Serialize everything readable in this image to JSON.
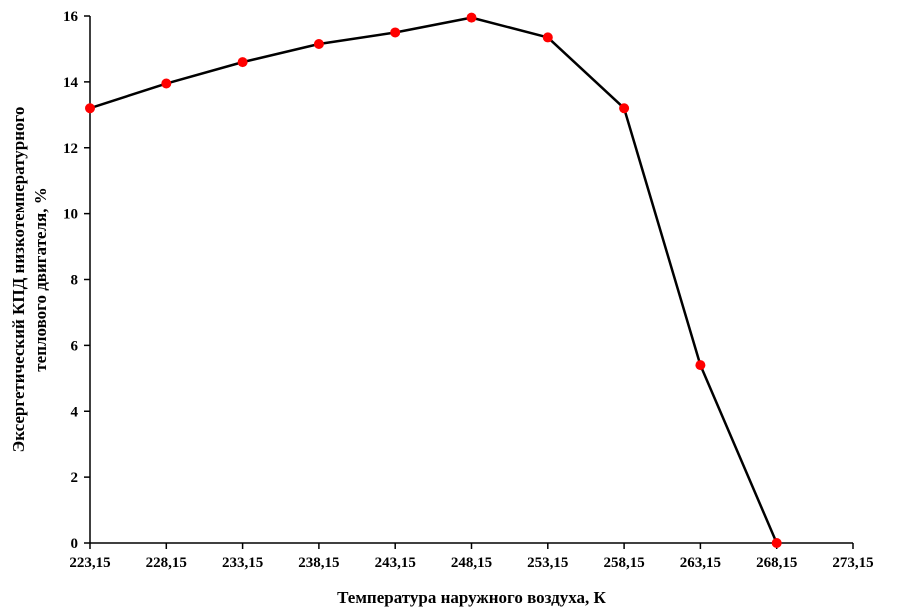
{
  "chart_data": {
    "type": "line",
    "title": "",
    "xlabel": "Температура наружного воздуха, К",
    "ylabel_line1": "Эксергетический КПД низкотемпературного",
    "ylabel_line2": "теплового двигателя, %",
    "x_ticks": [
      "223,15",
      "228,15",
      "233,15",
      "238,15",
      "243,15",
      "248,15",
      "253,15",
      "258,15",
      "263,15",
      "268,15",
      "273,15"
    ],
    "y_ticks": [
      "0",
      "2",
      "4",
      "6",
      "8",
      "10",
      "12",
      "14",
      "16"
    ],
    "xlim": [
      223.15,
      273.15
    ],
    "ylim": [
      0,
      16
    ],
    "grid": false,
    "legend": "none",
    "series": [
      {
        "x": [
          223.15,
          228.15,
          233.15,
          238.15,
          243.15,
          248.15,
          253.15,
          258.15,
          263.15,
          268.15
        ],
        "y": [
          13.2,
          13.95,
          14.6,
          15.15,
          15.5,
          15.95,
          15.35,
          13.2,
          5.4,
          0.0
        ],
        "line_color": "#000000",
        "marker_color": "#ff0000"
      }
    ]
  }
}
